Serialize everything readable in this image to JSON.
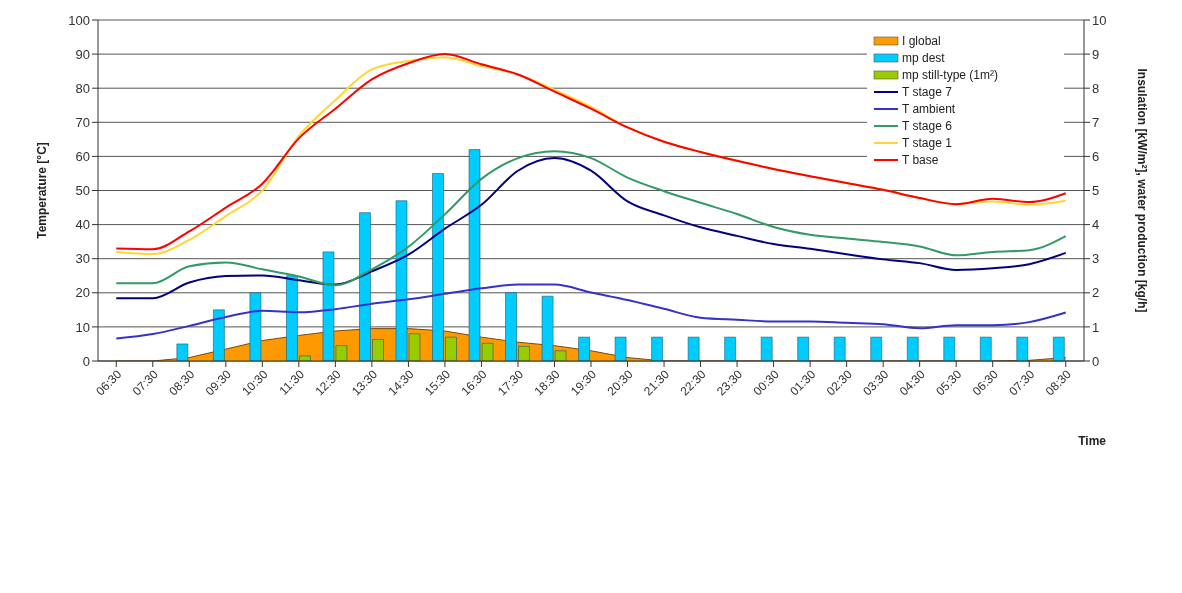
{
  "chart_data": {
    "type": "line",
    "xlabel": "Time",
    "ylabel": "Temperature [°C]",
    "y2label": "Insulation [kW/m²], water production [kg/h]",
    "categories": [
      "06:30",
      "07:30",
      "08:30",
      "09:30",
      "10:30",
      "11:30",
      "12:30",
      "13:30",
      "14:30",
      "15:30",
      "16:30",
      "17:30",
      "18:30",
      "19:30",
      "20:30",
      "21:30",
      "22:30",
      "23:30",
      "00:30",
      "01:30",
      "02:30",
      "03:30",
      "04:30",
      "05:30",
      "06:30",
      "07:30",
      "08:30"
    ],
    "series": [
      {
        "name": "I global",
        "type": "area",
        "axis": "y2",
        "color": "#ff9900",
        "values": [
          0,
          0,
          0.1,
          0.35,
          0.6,
          0.75,
          0.88,
          0.95,
          0.95,
          0.88,
          0.7,
          0.55,
          0.45,
          0.3,
          0.1,
          0,
          0,
          0,
          0,
          0,
          0,
          0,
          0,
          0,
          0,
          0.02,
          0.1
        ]
      },
      {
        "name": "mp dest",
        "type": "bar",
        "axis": "y2",
        "color": "#00ccff",
        "values": [
          null,
          null,
          0.5,
          1.5,
          2.0,
          2.5,
          3.2,
          4.35,
          4.7,
          5.5,
          6.2,
          2.0,
          1.9,
          0.7,
          0.7,
          0.7,
          0.7,
          0.7,
          0.7,
          0.7,
          0.7,
          0.7,
          0.7,
          0.7,
          0.7,
          0.7,
          0.7
        ]
      },
      {
        "name": "mp still-type (1m²)",
        "type": "bar",
        "axis": "y2",
        "color": "#99cc00",
        "values": [
          null,
          null,
          null,
          null,
          null,
          0.15,
          0.45,
          0.63,
          0.8,
          0.7,
          0.52,
          0.43,
          0.3,
          null,
          null,
          null,
          null,
          null,
          null,
          null,
          null,
          null,
          null,
          null,
          null,
          null,
          null
        ]
      },
      {
        "name": "T stage 7",
        "color": "#000080",
        "values": [
          18.4,
          18.4,
          23,
          24.9,
          25.1,
          23.7,
          22.4,
          26.3,
          31.2,
          38.8,
          45.8,
          55.8,
          59.5,
          55.8,
          46.8,
          42.7,
          39.2,
          36.7,
          34.3,
          32.9,
          31.3,
          29.8,
          28.7,
          26.7,
          27.2,
          28.4,
          31.7
        ]
      },
      {
        "name": "T ambient",
        "color": "#3333cc",
        "values": [
          6.6,
          7.9,
          10.3,
          12.9,
          14.7,
          14.3,
          15.2,
          16.8,
          18.1,
          19.7,
          21.3,
          22.4,
          22.4,
          20.1,
          17.9,
          15.3,
          12.7,
          12.1,
          11.6,
          11.6,
          11.2,
          10.8,
          9.6,
          10.5,
          10.5,
          11.4,
          14.2
        ]
      },
      {
        "name": "T stage 6",
        "color": "#339966",
        "values": [
          22.8,
          22.8,
          27.8,
          28.9,
          26.9,
          24.8,
          22.2,
          26.9,
          33.5,
          43,
          53.4,
          59.5,
          61.5,
          59.5,
          53.8,
          49.8,
          46.4,
          43.1,
          39.3,
          37,
          35.9,
          34.9,
          33.6,
          31,
          32,
          32.5,
          36.6
        ]
      },
      {
        "name": "T stage 1",
        "color": "#ffd633",
        "values": [
          32,
          31.4,
          35.5,
          42.5,
          50,
          66,
          76.5,
          85.5,
          88,
          89,
          86.5,
          84,
          79.5,
          74.5,
          68.5,
          64.3,
          61.3,
          58.7,
          56.3,
          54.2,
          52.2,
          50.2,
          47.8,
          46,
          46.8,
          45.8,
          47
        ]
      },
      {
        "name": "T base",
        "color": "#ff0000",
        "values": [
          33,
          32.8,
          38,
          45,
          52,
          65.3,
          74,
          82.6,
          87.3,
          90,
          87,
          84,
          79,
          74,
          68.5,
          64.3,
          61.3,
          58.7,
          56.3,
          54.2,
          52.2,
          50.2,
          47.8,
          46,
          47.6,
          46.6,
          49.2
        ]
      }
    ],
    "ylim": [
      0,
      100
    ],
    "yticks": [
      0,
      10,
      20,
      30,
      40,
      50,
      60,
      70,
      80,
      90,
      100
    ],
    "y2lim": [
      0,
      10
    ],
    "y2ticks": [
      0,
      1,
      2,
      3,
      4,
      5,
      6,
      7,
      8,
      9,
      10
    ],
    "grid": "y",
    "legend": "top right",
    "marker": "none",
    "line_style": "solid"
  }
}
